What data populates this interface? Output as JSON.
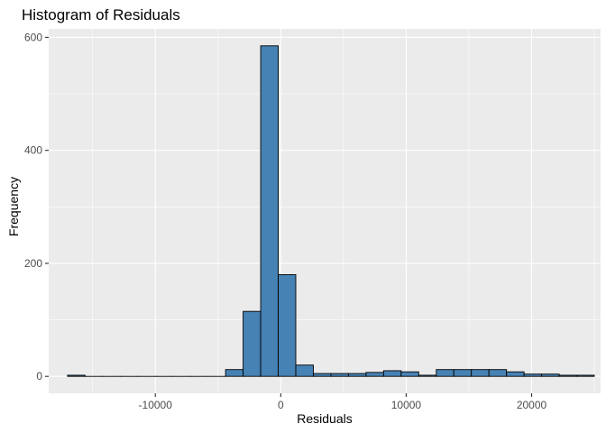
{
  "chart_data": {
    "type": "bar",
    "title": "Histogram of Residuals",
    "xlabel": "Residuals",
    "ylabel": "Frequency",
    "xlim": [
      -18500,
      25500
    ],
    "ylim": [
      -30,
      615
    ],
    "x_ticks": [
      -10000,
      0,
      10000,
      20000
    ],
    "x_tick_labels": [
      "-10000",
      "0",
      "10000",
      "20000"
    ],
    "y_ticks": [
      0,
      200,
      400,
      600
    ],
    "y_tick_labels": [
      "0",
      "200",
      "400",
      "600"
    ],
    "grid": true,
    "bins": [
      {
        "x0": -17000,
        "x1": -15600,
        "count": 2
      },
      {
        "x0": -15600,
        "x1": -14200,
        "count": 0
      },
      {
        "x0": -14200,
        "x1": -12800,
        "count": 0
      },
      {
        "x0": -12800,
        "x1": -11400,
        "count": 0
      },
      {
        "x0": -11400,
        "x1": -10000,
        "count": 0
      },
      {
        "x0": -10000,
        "x1": -8600,
        "count": 0
      },
      {
        "x0": -8600,
        "x1": -7200,
        "count": 0
      },
      {
        "x0": -7200,
        "x1": -5800,
        "count": 0
      },
      {
        "x0": -5800,
        "x1": -4400,
        "count": 0
      },
      {
        "x0": -4400,
        "x1": -3000,
        "count": 12
      },
      {
        "x0": -3000,
        "x1": -1600,
        "count": 115
      },
      {
        "x0": -1600,
        "x1": -200,
        "count": 585
      },
      {
        "x0": -200,
        "x1": 1200,
        "count": 180
      },
      {
        "x0": 1200,
        "x1": 2600,
        "count": 20
      },
      {
        "x0": 2600,
        "x1": 4000,
        "count": 5
      },
      {
        "x0": 4000,
        "x1": 5400,
        "count": 5
      },
      {
        "x0": 5400,
        "x1": 6800,
        "count": 5
      },
      {
        "x0": 6800,
        "x1": 8200,
        "count": 7
      },
      {
        "x0": 8200,
        "x1": 9600,
        "count": 10
      },
      {
        "x0": 9600,
        "x1": 11000,
        "count": 8
      },
      {
        "x0": 11000,
        "x1": 12400,
        "count": 2
      },
      {
        "x0": 12400,
        "x1": 13800,
        "count": 12
      },
      {
        "x0": 13800,
        "x1": 15200,
        "count": 12
      },
      {
        "x0": 15200,
        "x1": 16600,
        "count": 12
      },
      {
        "x0": 16600,
        "x1": 18000,
        "count": 12
      },
      {
        "x0": 18000,
        "x1": 19400,
        "count": 8
      },
      {
        "x0": 19400,
        "x1": 20800,
        "count": 4
      },
      {
        "x0": 20800,
        "x1": 22200,
        "count": 4
      },
      {
        "x0": 22200,
        "x1": 23600,
        "count": 2
      },
      {
        "x0": 23600,
        "x1": 25000,
        "count": 2
      }
    ],
    "colors": {
      "bar_fill": "#4682B4",
      "bar_stroke": "#000000",
      "panel_bg": "#EBEBEB",
      "grid_major": "#FFFFFF",
      "tick_text": "#4D4D4D"
    }
  }
}
